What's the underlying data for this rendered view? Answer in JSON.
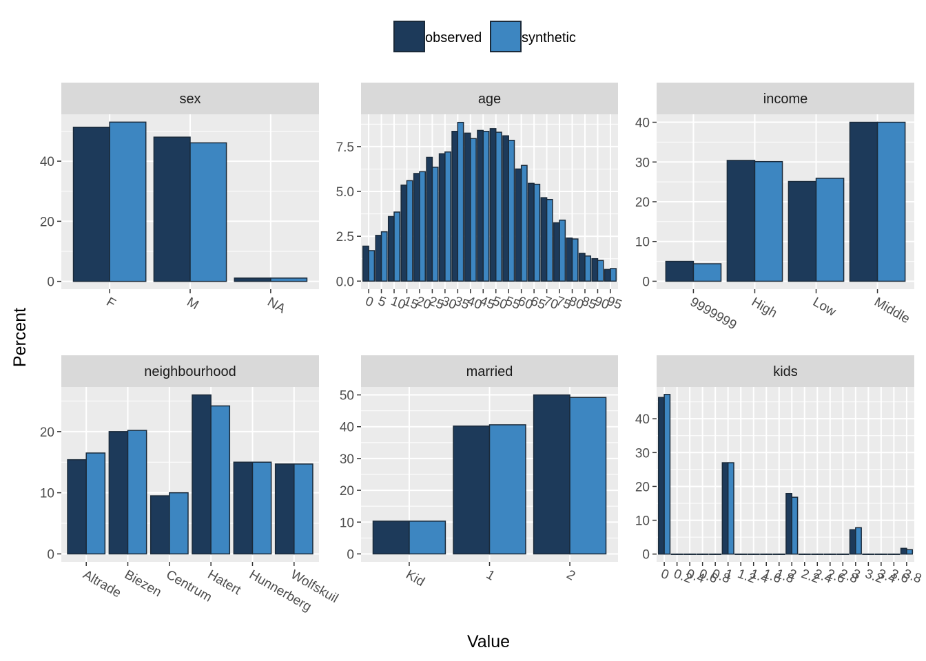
{
  "colors": {
    "observed": "#1d3a5a",
    "synthetic": "#3d86c1",
    "panel_bg": "#ebebeb",
    "strip_bg": "#d9d9d9",
    "grid": "#ffffff",
    "bar_outline": "#1a2a3a"
  },
  "legend": {
    "observed_label": "observed",
    "synthetic_label": "synthetic"
  },
  "xlabel": "Value",
  "ylabel": "Percent",
  "chart_data": [
    {
      "type": "bar",
      "title": "sex",
      "xlabel": "Value",
      "ylabel": "Percent",
      "categories": [
        "F",
        "M",
        "NA"
      ],
      "tick_labels": [
        "F",
        "M",
        "NA"
      ],
      "series": [
        {
          "name": "observed",
          "values": [
            51.3,
            48.0,
            1.1
          ]
        },
        {
          "name": "synthetic",
          "values": [
            53.0,
            46.1,
            1.1
          ]
        }
      ],
      "ylim": [
        -2.6,
        55.6
      ],
      "y_ticks": [
        0,
        20,
        40
      ],
      "y_tick_labels": [
        "0",
        "20",
        "40"
      ]
    },
    {
      "type": "bar",
      "title": "age",
      "xlabel": "Value",
      "ylabel": "Percent",
      "categories": [
        "0",
        "5",
        "10",
        "15",
        "20",
        "25",
        "30",
        "35",
        "40",
        "45",
        "50",
        "55",
        "60",
        "65",
        "70",
        "75",
        "80",
        "85",
        "90",
        "95"
      ],
      "tick_labels": [
        "0",
        "5",
        "10",
        "15",
        "20",
        "25",
        "30",
        "35",
        "40",
        "45",
        "50",
        "55",
        "60",
        "65",
        "70",
        "75",
        "80",
        "85",
        "90",
        "95"
      ],
      "series": [
        {
          "name": "observed",
          "values": [
            1.95,
            2.55,
            3.6,
            5.35,
            6.0,
            6.9,
            7.1,
            8.35,
            8.25,
            8.4,
            8.5,
            8.1,
            6.25,
            5.45,
            4.65,
            3.25,
            2.4,
            1.55,
            1.25,
            0.65
          ]
        },
        {
          "name": "synthetic",
          "values": [
            1.7,
            2.75,
            3.85,
            5.6,
            6.1,
            6.35,
            7.2,
            8.85,
            7.95,
            8.35,
            8.3,
            7.85,
            6.45,
            5.4,
            4.55,
            3.4,
            2.35,
            1.4,
            1.15,
            0.7
          ]
        }
      ],
      "ylim": [
        -0.45,
        9.3
      ],
      "y_ticks": [
        0,
        2.5,
        5,
        7.5
      ],
      "y_tick_labels": [
        "0.0",
        "2.5",
        "5.0",
        "7.5"
      ]
    },
    {
      "type": "bar",
      "title": "income",
      "xlabel": "Value",
      "ylabel": "Percent",
      "categories": [
        "9999999",
        "High",
        "Low",
        "Middle"
      ],
      "tick_labels": [
        "9999999",
        "High",
        "Low",
        "Middle"
      ],
      "series": [
        {
          "name": "observed",
          "values": [
            5.0,
            30.4,
            25.1,
            40.0
          ]
        },
        {
          "name": "synthetic",
          "values": [
            4.4,
            30.1,
            25.9,
            40.0
          ]
        }
      ],
      "ylim": [
        -2.0,
        42.0
      ],
      "y_ticks": [
        0,
        10,
        20,
        30,
        40
      ],
      "y_tick_labels": [
        "0",
        "10",
        "20",
        "30",
        "40"
      ]
    },
    {
      "type": "bar",
      "title": "neighbourhood",
      "xlabel": "Value",
      "ylabel": "Percent",
      "categories": [
        "Altrade",
        "Biezen",
        "Centrum",
        "Hatert",
        "Hunnerberg",
        "Wolfskuil"
      ],
      "tick_labels": [
        "Altrade",
        "Biezen",
        "Centrum",
        "Hatert",
        "Hunnerberg",
        "Wolfskuil"
      ],
      "series": [
        {
          "name": "observed",
          "values": [
            15.4,
            20.0,
            9.5,
            26.0,
            15.0,
            14.7
          ]
        },
        {
          "name": "synthetic",
          "values": [
            16.5,
            20.2,
            10.0,
            24.2,
            15.0,
            14.7
          ]
        }
      ],
      "ylim": [
        -1.3,
        27.3
      ],
      "y_ticks": [
        0,
        10,
        20
      ],
      "y_tick_labels": [
        "0",
        "10",
        "20"
      ]
    },
    {
      "type": "bar",
      "title": "married",
      "xlabel": "Value",
      "ylabel": "Percent",
      "categories": [
        "Kid",
        "1",
        "2"
      ],
      "tick_labels": [
        "Kid",
        "1",
        "2"
      ],
      "series": [
        {
          "name": "observed",
          "values": [
            10.3,
            40.2,
            50.0
          ]
        },
        {
          "name": "synthetic",
          "values": [
            10.3,
            40.6,
            49.2
          ]
        }
      ],
      "ylim": [
        -2.5,
        52.5
      ],
      "y_ticks": [
        0,
        10,
        20,
        30,
        40,
        50
      ],
      "y_tick_labels": [
        "0",
        "10",
        "20",
        "30",
        "40",
        "50"
      ]
    },
    {
      "type": "bar",
      "title": "kids",
      "xlabel": "Value",
      "ylabel": "Percent",
      "categories": [
        "0",
        "0.2",
        "0.4",
        "0.6",
        "0.8",
        "1",
        "1.2",
        "1.4",
        "1.6",
        "1.8",
        "2",
        "2.2",
        "2.4",
        "2.6",
        "2.8",
        "3",
        "3.2",
        "3.4",
        "3.6",
        "3.8"
      ],
      "tick_labels": [
        "0",
        "0.2",
        "0.4",
        "0.6",
        "0.8",
        "1",
        "1.2",
        "1.4",
        "1.6",
        "1.8",
        "2",
        "2.2",
        "2.4",
        "2.6",
        "2.8",
        "3",
        "3.2",
        "3.4",
        "3.6",
        "3.8"
      ],
      "series": [
        {
          "name": "observed",
          "values": [
            46.3,
            0,
            0,
            0,
            0,
            27.0,
            0,
            0,
            0,
            0,
            17.9,
            0,
            0,
            0,
            0,
            7.2,
            0,
            0,
            0,
            1.7
          ]
        },
        {
          "name": "synthetic",
          "values": [
            47.2,
            0,
            0,
            0,
            0,
            27.0,
            0,
            0,
            0,
            0,
            16.8,
            0,
            0,
            0,
            0,
            7.8,
            0,
            0,
            0,
            1.3
          ]
        }
      ],
      "ylim": [
        -2.3,
        49.4
      ],
      "y_ticks": [
        0,
        10,
        20,
        30,
        40
      ],
      "y_tick_labels": [
        "0",
        "10",
        "20",
        "30",
        "40"
      ]
    }
  ]
}
